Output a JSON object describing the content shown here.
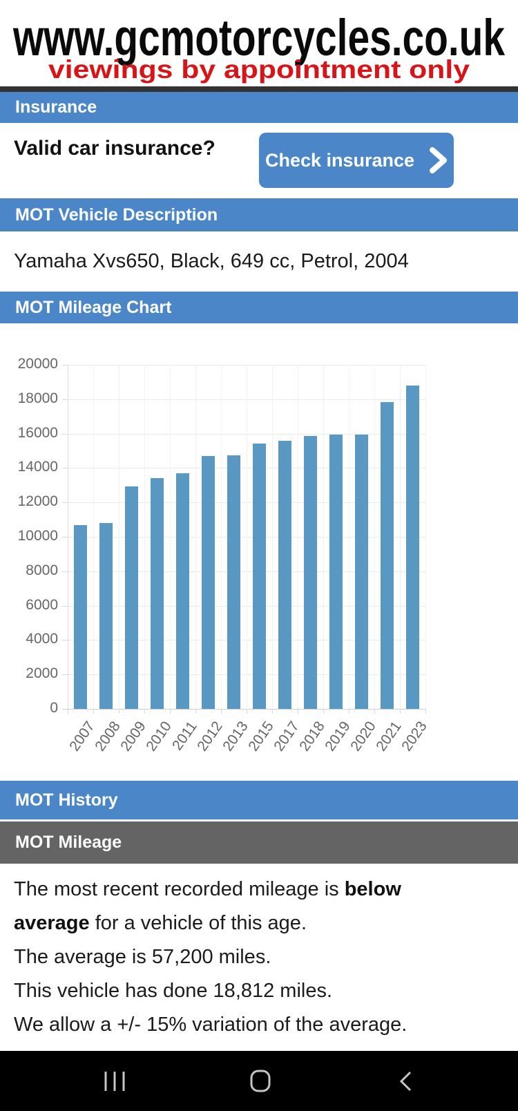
{
  "theme": {
    "header_blue": "#4b87c8",
    "header_gray": "#646464",
    "banner_red": "#d81418",
    "nav_icon_gray": "#c6c6c6"
  },
  "banner": {
    "title": "www.gcmotorcycles.co.uk",
    "subtitle": "viewings by appointment only"
  },
  "insurance": {
    "header": "Insurance",
    "question": "Valid car insurance?",
    "button_label": "Check insurance"
  },
  "vehicle": {
    "header": "MOT Vehicle Description",
    "description": "Yamaha Xvs650, Black, 649 cc, Petrol, 2004"
  },
  "chart_section": {
    "header": "MOT Mileage Chart"
  },
  "chart_data": {
    "type": "bar",
    "title": "MOT Mileage Chart",
    "categories": [
      "2007",
      "2008",
      "2009",
      "2010",
      "2011",
      "2012",
      "2013",
      "2015",
      "2017",
      "2018",
      "2019",
      "2020",
      "2021",
      "2023"
    ],
    "values": [
      10700,
      10800,
      12950,
      13400,
      13700,
      14700,
      14720,
      15420,
      15600,
      15850,
      15950,
      15950,
      17850,
      18812
    ],
    "xlabel": "",
    "ylabel": "",
    "ylim": [
      0,
      20000
    ],
    "ytick_step": 2000,
    "grid": true,
    "legend": false,
    "bar_color": "#5898c2"
  },
  "history": {
    "header": "MOT History",
    "subheader": "MOT Mileage"
  },
  "mileage_text": {
    "sentence1_pre": "The most recent recorded mileage is ",
    "sentence1_bold": "below average",
    "sentence1_post": " for a vehicle of this age.",
    "line2": "The average is 57,200 miles.",
    "line3": "This vehicle has done 18,812 miles.",
    "line4": "We allow a +/- 15% variation of the average."
  },
  "navbar": {
    "recents": "recent-apps",
    "home": "home",
    "back": "back"
  }
}
